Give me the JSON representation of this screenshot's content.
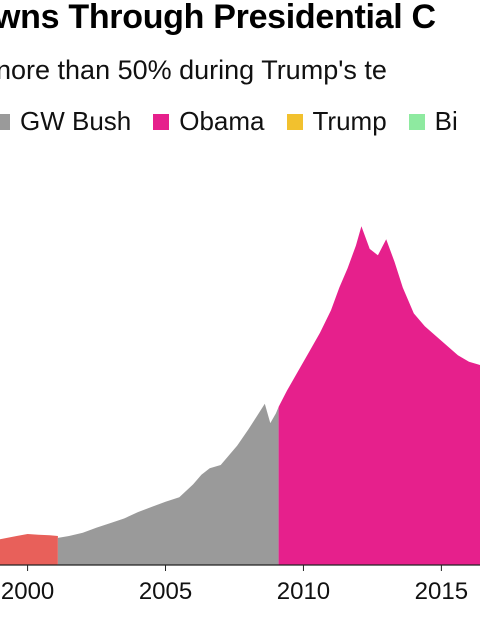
{
  "chart_data": {
    "type": "area",
    "title": "wns Through Presidential C",
    "subtitle": "nore than 50% during Trump's te",
    "legend": [
      {
        "name": "GW Bush",
        "color": "#9a9a9a"
      },
      {
        "name": "Obama",
        "color": "#e6208c"
      },
      {
        "name": "Trump",
        "color": "#f2c12e"
      },
      {
        "name": "Bi",
        "color": "#8eeaa0"
      }
    ],
    "xlim": [
      1999.0,
      2016.4
    ],
    "ylim": [
      0,
      6.2
    ],
    "x_ticks": [
      "2000",
      "2005",
      "2010",
      "2015"
    ],
    "x_tick_values": [
      2000,
      2005,
      2010,
      2015
    ],
    "series": [
      {
        "color": "#e8605a",
        "x": [
          1999.0,
          1999.6,
          2000.0,
          2000.4,
          2000.8,
          2001.1
        ],
        "y": [
          0.4,
          0.45,
          0.48,
          0.47,
          0.46,
          0.45
        ]
      },
      {
        "color": "#9a9a9a",
        "x": [
          2001.1,
          2001.5,
          2002.0,
          2002.5,
          2003.0,
          2003.5,
          2004.0,
          2004.5,
          2005.0,
          2005.5,
          2006.0,
          2006.3,
          2006.6,
          2007.0,
          2007.3,
          2007.6,
          2008.0,
          2008.3,
          2008.6,
          2008.8,
          2009.0,
          2009.1
        ],
        "y": [
          0.42,
          0.45,
          0.5,
          0.58,
          0.65,
          0.72,
          0.82,
          0.9,
          0.98,
          1.05,
          1.25,
          1.4,
          1.5,
          1.55,
          1.7,
          1.85,
          2.1,
          2.3,
          2.5,
          2.2,
          2.35,
          2.45
        ]
      },
      {
        "color": "#e6208c",
        "x": [
          2009.1,
          2009.4,
          2009.8,
          2010.2,
          2010.6,
          2011.0,
          2011.3,
          2011.6,
          2011.9,
          2012.1,
          2012.4,
          2012.7,
          2013.0,
          2013.3,
          2013.6,
          2014.0,
          2014.4,
          2014.8,
          2015.2,
          2015.6,
          2016.0,
          2016.4
        ],
        "y": [
          2.45,
          2.7,
          3.0,
          3.3,
          3.6,
          3.95,
          4.3,
          4.6,
          4.95,
          5.25,
          4.9,
          4.8,
          5.05,
          4.7,
          4.3,
          3.9,
          3.7,
          3.55,
          3.4,
          3.25,
          3.15,
          3.1
        ]
      }
    ],
    "grid": false
  }
}
